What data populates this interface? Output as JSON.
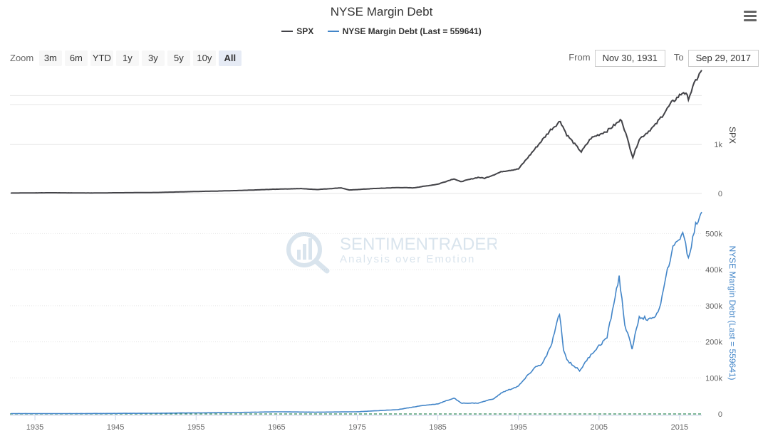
{
  "menu_icon": "hamburger-menu-icon",
  "zoom": {
    "label": "Zoom",
    "buttons": [
      "3m",
      "6m",
      "YTD",
      "1y",
      "3y",
      "5y",
      "10y",
      "All"
    ],
    "active": "All"
  },
  "range": {
    "from_label": "From",
    "from_value": "Nov 30, 1931",
    "to_label": "To",
    "to_value": "Sep 29, 2017"
  },
  "watermark": {
    "brand": "SENTIMENTRADER",
    "tagline": "Analysis over Emotion"
  },
  "chart_data": {
    "type": "line",
    "title": "NYSE Margin Debt",
    "x_range": [
      1931.9,
      2017.75
    ],
    "x_ticks": [
      "1935",
      "1945",
      "1955",
      "1965",
      "1975",
      "1985",
      "1995",
      "2005",
      "2015"
    ],
    "legend_placement": "top-center",
    "grid": true,
    "panes": [
      {
        "series_name": "SPX",
        "axis_label": "SPX",
        "color": "#434348",
        "y_range": [
          0,
          2500
        ],
        "y_ticks": [
          "0",
          "1k"
        ],
        "x": [
          1932,
          1937,
          1942,
          1945,
          1950,
          1955,
          1960,
          1965,
          1968,
          1970,
          1973,
          1974,
          1977,
          1980,
          1982,
          1985,
          1987,
          1987.8,
          1990,
          1990.8,
          1993,
          1995,
          1997,
          1998,
          1999,
          2000.2,
          2001,
          2002.8,
          2004,
          2006,
          2007.8,
          2009.2,
          2010,
          2011,
          2012,
          2014,
          2015.5,
          2016.1,
          2017,
          2017.75
        ],
        "values": [
          8,
          15,
          9,
          14,
          20,
          40,
          58,
          88,
          100,
          80,
          115,
          70,
          100,
          120,
          115,
          190,
          300,
          240,
          330,
          310,
          450,
          500,
          900,
          1100,
          1300,
          1480,
          1200,
          850,
          1130,
          1280,
          1510,
          740,
          1110,
          1250,
          1400,
          1850,
          2080,
          1950,
          2300,
          2520
        ]
      },
      {
        "series_name": "NYSE Margin Debt (Last = 559641)",
        "axis_label": "NYSE Margin Debt (Last = 559641)",
        "color": "#4285c8",
        "y_range": [
          0,
          560000
        ],
        "y_ticks": [
          "0",
          "100k",
          "200k",
          "300k",
          "400k",
          "500k"
        ],
        "x": [
          1932,
          1940,
          1950,
          1960,
          1965,
          1970,
          1975,
          1980,
          1983,
          1985,
          1987,
          1987.9,
          1990,
          1992,
          1993,
          1995,
          1997,
          1998,
          1999,
          2000.1,
          2000.6,
          2001,
          2002.6,
          2004,
          2006,
          2007.5,
          2008.2,
          2009.1,
          2010,
          2011.5,
          2012.5,
          2014,
          2015.4,
          2016.1,
          2017,
          2017.75
        ],
        "values": [
          1000,
          1000,
          2000,
          4000,
          6000,
          5000,
          6000,
          12000,
          23000,
          28000,
          44000,
          30000,
          30000,
          43000,
          60000,
          77000,
          128000,
          140000,
          185000,
          278000,
          180000,
          150000,
          120000,
          165000,
          212000,
          381000,
          250000,
          180000,
          270000,
          260000,
          290000,
          450000,
          505000,
          430000,
          525000,
          559641
        ]
      }
    ]
  }
}
